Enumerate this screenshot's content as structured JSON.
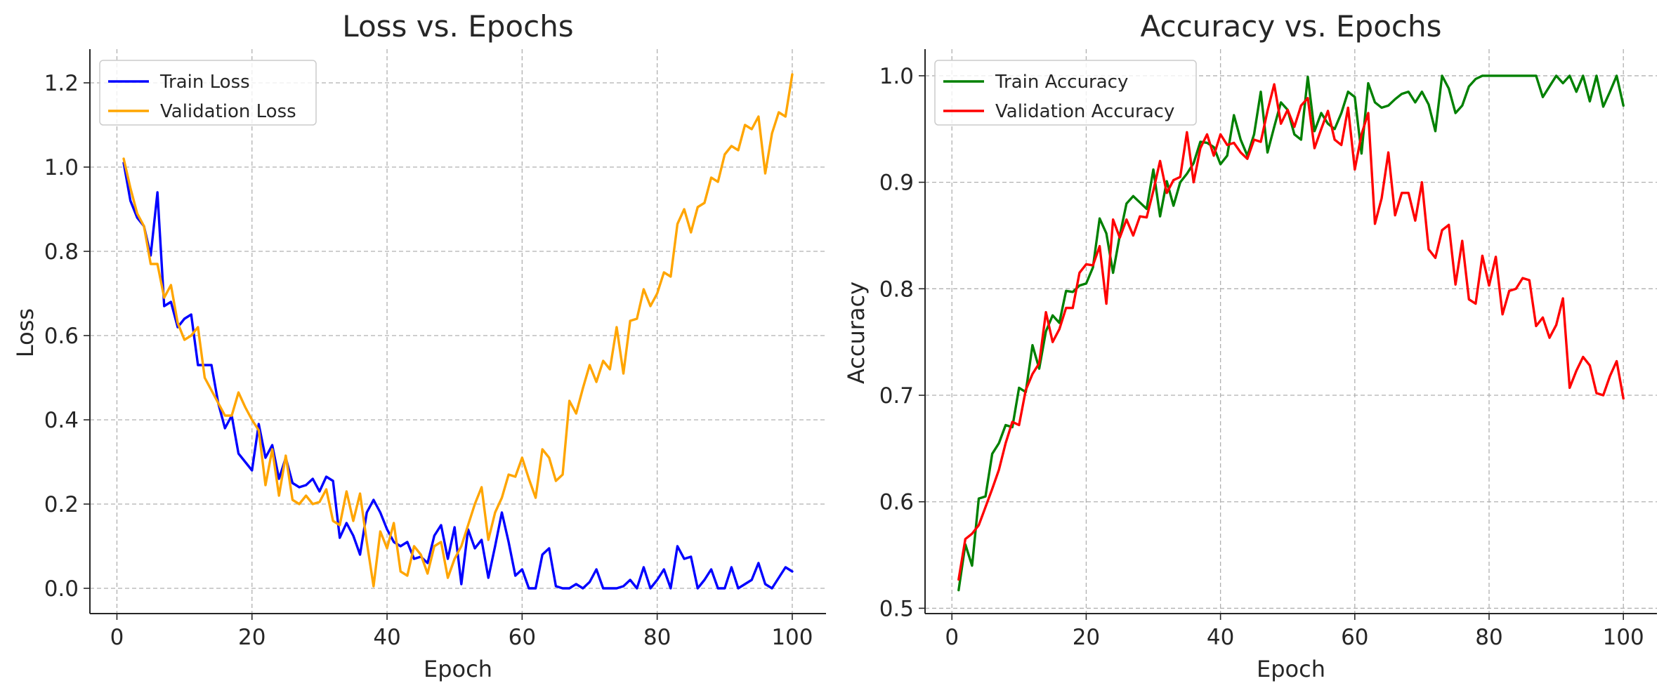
{
  "chart_data": [
    {
      "type": "line",
      "title": "Loss vs. Epochs",
      "xlabel": "Epoch",
      "ylabel": "Loss",
      "xlim": [
        -4,
        105
      ],
      "ylim": [
        -0.06,
        1.28
      ],
      "xticks": [
        0,
        20,
        40,
        60,
        80,
        100
      ],
      "yticks": [
        0.0,
        0.2,
        0.4,
        0.6,
        0.8,
        1.0,
        1.2
      ],
      "xtick_labels": [
        "0",
        "20",
        "40",
        "60",
        "80",
        "100"
      ],
      "ytick_labels": [
        "0.0",
        "0.2",
        "0.4",
        "0.6",
        "0.8",
        "1.0",
        "1.2"
      ],
      "grid": true,
      "legend": "upper-left",
      "x_start": 1,
      "series": [
        {
          "name": "Train Loss",
          "color": "#0000ff",
          "values": [
            1.01,
            0.92,
            0.88,
            0.86,
            0.79,
            0.94,
            0.67,
            0.68,
            0.62,
            0.64,
            0.65,
            0.53,
            0.53,
            0.53,
            0.44,
            0.38,
            0.41,
            0.32,
            0.3,
            0.28,
            0.39,
            0.31,
            0.34,
            0.26,
            0.31,
            0.25,
            0.24,
            0.245,
            0.26,
            0.23,
            0.265,
            0.255,
            0.12,
            0.155,
            0.125,
            0.08,
            0.18,
            0.21,
            0.18,
            0.14,
            0.11,
            0.1,
            0.11,
            0.07,
            0.075,
            0.06,
            0.125,
            0.15,
            0.07,
            0.145,
            0.01,
            0.14,
            0.095,
            0.115,
            0.025,
            0.1,
            0.18,
            0.11,
            0.03,
            0.045,
            0.0,
            0.0,
            0.08,
            0.095,
            0.005,
            0.0,
            0.0,
            0.01,
            0.0,
            0.015,
            0.045,
            0.0,
            0.0,
            0.0,
            0.005,
            0.02,
            0.0,
            0.05,
            0.0,
            0.02,
            0.045,
            0.0,
            0.1,
            0.07,
            0.075,
            0.0,
            0.02,
            0.045,
            0.0,
            0.0,
            0.05,
            0.0,
            0.01,
            0.02,
            0.06,
            0.01,
            0.0,
            0.025,
            0.05,
            0.04
          ]
        },
        {
          "name": "Validation Loss",
          "color": "#ffa500",
          "values": [
            1.02,
            0.95,
            0.89,
            0.86,
            0.77,
            0.77,
            0.69,
            0.72,
            0.63,
            0.59,
            0.6,
            0.62,
            0.5,
            0.47,
            0.44,
            0.41,
            0.41,
            0.465,
            0.43,
            0.4,
            0.375,
            0.245,
            0.33,
            0.22,
            0.315,
            0.21,
            0.2,
            0.22,
            0.2,
            0.205,
            0.235,
            0.16,
            0.15,
            0.23,
            0.16,
            0.225,
            0.11,
            0.005,
            0.135,
            0.095,
            0.155,
            0.04,
            0.03,
            0.1,
            0.08,
            0.035,
            0.1,
            0.11,
            0.025,
            0.07,
            0.1,
            0.15,
            0.2,
            0.24,
            0.115,
            0.18,
            0.215,
            0.27,
            0.265,
            0.31,
            0.26,
            0.215,
            0.33,
            0.31,
            0.255,
            0.27,
            0.445,
            0.415,
            0.475,
            0.53,
            0.49,
            0.54,
            0.52,
            0.62,
            0.51,
            0.635,
            0.64,
            0.71,
            0.67,
            0.7,
            0.75,
            0.74,
            0.865,
            0.9,
            0.845,
            0.905,
            0.915,
            0.975,
            0.965,
            1.03,
            1.05,
            1.04,
            1.1,
            1.09,
            1.12,
            0.985,
            1.08,
            1.13,
            1.12,
            1.22
          ]
        }
      ]
    },
    {
      "type": "line",
      "title": "Accuracy vs. Epochs",
      "xlabel": "Epoch",
      "ylabel": "Accuracy",
      "xlim": [
        -4,
        105
      ],
      "ylim": [
        0.495,
        1.025
      ],
      "xticks": [
        0,
        20,
        40,
        60,
        80,
        100
      ],
      "yticks": [
        0.5,
        0.6,
        0.7,
        0.8,
        0.9,
        1.0
      ],
      "xtick_labels": [
        "0",
        "20",
        "40",
        "60",
        "80",
        "100"
      ],
      "ytick_labels": [
        "0.5",
        "0.6",
        "0.7",
        "0.8",
        "0.9",
        "1.0"
      ],
      "grid": true,
      "legend": "upper-left",
      "x_start": 1,
      "series": [
        {
          "name": "Train Accuracy",
          "color": "#008000",
          "values": [
            0.517,
            0.56,
            0.54,
            0.603,
            0.605,
            0.645,
            0.655,
            0.672,
            0.67,
            0.707,
            0.703,
            0.747,
            0.725,
            0.76,
            0.775,
            0.768,
            0.798,
            0.797,
            0.803,
            0.805,
            0.82,
            0.866,
            0.852,
            0.815,
            0.85,
            0.88,
            0.887,
            0.881,
            0.875,
            0.912,
            0.868,
            0.901,
            0.878,
            0.9,
            0.908,
            0.918,
            0.938,
            0.937,
            0.933,
            0.917,
            0.925,
            0.963,
            0.94,
            0.925,
            0.945,
            0.985,
            0.928,
            0.952,
            0.975,
            0.968,
            0.945,
            0.94,
            0.999,
            0.948,
            0.965,
            0.955,
            0.95,
            0.965,
            0.985,
            0.98,
            0.927,
            0.993,
            0.975,
            0.97,
            0.972,
            0.978,
            0.983,
            0.985,
            0.975,
            0.985,
            0.973,
            0.948,
            1.0,
            0.988,
            0.965,
            0.972,
            0.99,
            0.997,
            1.0,
            1.0,
            1.0,
            1.0,
            1.0,
            1.0,
            1.0,
            1.0,
            1.0,
            0.98,
            0.99,
            1.0,
            0.993,
            1.0,
            0.985,
            1.0,
            0.976,
            1.0,
            0.971,
            0.985,
            1.0,
            0.972
          ]
        },
        {
          "name": "Validation Accuracy",
          "color": "#ff0000",
          "values": [
            0.527,
            0.565,
            0.57,
            0.578,
            0.595,
            0.612,
            0.63,
            0.655,
            0.675,
            0.672,
            0.705,
            0.72,
            0.73,
            0.778,
            0.75,
            0.762,
            0.782,
            0.782,
            0.815,
            0.823,
            0.822,
            0.84,
            0.786,
            0.865,
            0.848,
            0.865,
            0.85,
            0.868,
            0.867,
            0.892,
            0.92,
            0.89,
            0.902,
            0.905,
            0.947,
            0.9,
            0.932,
            0.945,
            0.925,
            0.945,
            0.935,
            0.937,
            0.928,
            0.922,
            0.94,
            0.938,
            0.967,
            0.992,
            0.955,
            0.968,
            0.952,
            0.972,
            0.979,
            0.932,
            0.95,
            0.967,
            0.94,
            0.935,
            0.97,
            0.912,
            0.945,
            0.965,
            0.861,
            0.885,
            0.928,
            0.869,
            0.89,
            0.89,
            0.864,
            0.9,
            0.837,
            0.829,
            0.855,
            0.86,
            0.804,
            0.845,
            0.79,
            0.786,
            0.831,
            0.803,
            0.83,
            0.776,
            0.798,
            0.8,
            0.81,
            0.808,
            0.765,
            0.773,
            0.754,
            0.766,
            0.791,
            0.707,
            0.723,
            0.736,
            0.728,
            0.702,
            0.7,
            0.718,
            0.732,
            0.697
          ]
        }
      ]
    }
  ]
}
